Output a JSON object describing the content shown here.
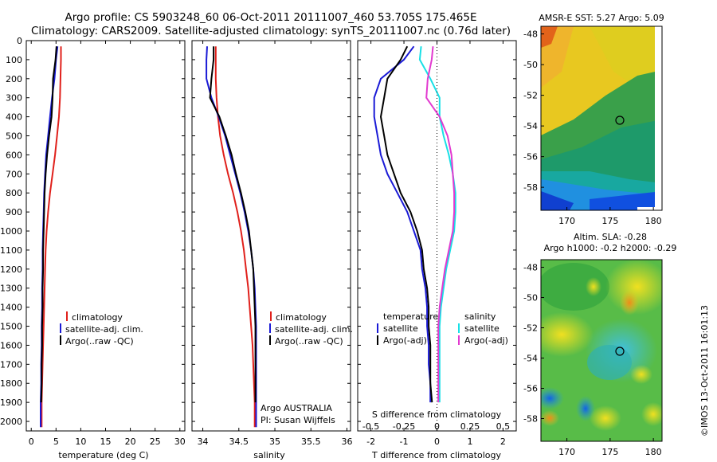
{
  "header": {
    "title_line1": "Argo profile: CS 5903248_60 06-Oct-2011 20111007_460 53.705S 175.465E",
    "title_line2": "Climatology: CARS2009. Satellite-adjusted climatology: synTS_20111007.nc (0.76d later)"
  },
  "colors": {
    "climatology": "#e0201b",
    "satellite": "#1a1ad6",
    "argo": "#000000",
    "sal_satellite": "#18e0e6",
    "sal_argo": "#e23ad0"
  },
  "depth_ticks": [
    "0",
    "100",
    "200",
    "300",
    "400",
    "500",
    "600",
    "700",
    "800",
    "900",
    "1000",
    "1100",
    "1200",
    "1300",
    "1400",
    "1500",
    "1600",
    "1700",
    "1800",
    "1900",
    "2000"
  ],
  "panel_temperature": {
    "xlabel": "temperature (deg C)",
    "xticks": [
      "0",
      "5",
      "10",
      "15",
      "20",
      "25",
      "30"
    ],
    "legend": [
      "climatology",
      "satellite-adj. clim.",
      "Argo(..raw -QC)"
    ]
  },
  "panel_salinity": {
    "xlabel": "salinity",
    "xticks": [
      "34",
      "34.5",
      "35",
      "35.5",
      "36"
    ],
    "legend": [
      "climatology",
      "satellite-adj. clim.",
      "Argo(..raw -QC)"
    ],
    "note_line1": "Argo AUSTRALIA",
    "note_line2": "PI: Susan Wijffels"
  },
  "panel_difference": {
    "xlabel": "T difference from climatology",
    "xlabel_top": "S difference from climatology",
    "xticks_t": [
      "-2",
      "-1",
      "0",
      "1",
      "2"
    ],
    "xticks_s": [
      "-0.5",
      "-0.25",
      "0",
      "0.25",
      "0.5"
    ],
    "legend_left_title": "temperature",
    "legend_left": [
      "satellite",
      "Argo(-adj)"
    ],
    "legend_right_title": "salinity",
    "legend_right": [
      "satellite",
      "Argo(-adj)"
    ]
  },
  "map_sst": {
    "title": "AMSR-E SST: 5.27 Argo: 5.09",
    "yticks": [
      "-48",
      "-50",
      "-52",
      "-54",
      "-56",
      "-58"
    ],
    "xticks": [
      "170",
      "175",
      "180"
    ]
  },
  "map_sla": {
    "title_line1": "Altim. SLA: -0.28",
    "title_line2": "Argo h1000: -0.2 h2000: -0.29",
    "yticks": [
      "-48",
      "-50",
      "-52",
      "-54",
      "-56",
      "-58"
    ],
    "xticks": [
      "170",
      "175",
      "180"
    ]
  },
  "stamp": "©IMOS 13-Oct-2011 16:01:13",
  "chart_data": [
    {
      "type": "line",
      "name": "temperature profile",
      "xlabel": "temperature (deg C)",
      "ylabel": "",
      "xlim": [
        -1,
        31
      ],
      "ylim": [
        2050,
        0
      ],
      "series": [
        {
          "name": "climatology",
          "x": [
            6.0,
            6.0,
            5.9,
            5.8,
            5.6,
            5.2,
            4.8,
            4.3,
            3.8,
            3.4,
            3.1,
            2.9,
            2.8,
            2.7,
            2.6,
            2.5,
            2.4,
            2.3,
            2.2,
            2.1,
            2.1
          ],
          "y": [
            30,
            100,
            200,
            300,
            400,
            500,
            600,
            700,
            800,
            900,
            1000,
            1100,
            1200,
            1300,
            1400,
            1500,
            1600,
            1700,
            1800,
            1900,
            2030
          ]
        },
        {
          "name": "satellite-adj. clim.",
          "x": [
            5.3,
            5.0,
            4.7,
            4.2,
            3.8,
            3.4,
            3.0,
            2.8,
            2.6,
            2.5,
            2.4,
            2.3,
            2.3,
            2.2,
            2.2,
            2.1,
            2.1,
            2.0,
            2.0,
            1.9,
            1.9
          ],
          "y": [
            30,
            100,
            200,
            300,
            400,
            500,
            600,
            700,
            800,
            900,
            1000,
            1100,
            1200,
            1300,
            1400,
            1500,
            1600,
            1700,
            1800,
            1900,
            2030
          ]
        },
        {
          "name": "Argo(..raw -QC)",
          "x": [
            5.1,
            4.9,
            4.4,
            4.3,
            4.1,
            3.6,
            3.2,
            2.9,
            2.7,
            2.6,
            2.5,
            2.4,
            2.4,
            2.3,
            2.3,
            2.2,
            2.2,
            2.1,
            2.1,
            2.0
          ],
          "y": [
            30,
            100,
            200,
            300,
            400,
            500,
            600,
            700,
            800,
            900,
            1000,
            1100,
            1200,
            1300,
            1400,
            1500,
            1600,
            1700,
            1800,
            1900
          ]
        }
      ]
    },
    {
      "type": "line",
      "name": "salinity profile",
      "xlabel": "salinity",
      "xlim": [
        33.85,
        36.05
      ],
      "ylim": [
        2050,
        0
      ],
      "series": [
        {
          "name": "climatology",
          "x": [
            34.18,
            34.18,
            34.18,
            34.19,
            34.21,
            34.24,
            34.29,
            34.35,
            34.42,
            34.48,
            34.53,
            34.57,
            34.6,
            34.63,
            34.65,
            34.67,
            34.69,
            34.7,
            34.71,
            34.72,
            34.72
          ],
          "y": [
            30,
            100,
            200,
            300,
            400,
            500,
            600,
            700,
            800,
            900,
            1000,
            1100,
            1200,
            1300,
            1400,
            1500,
            1600,
            1700,
            1800,
            1900,
            2030
          ]
        },
        {
          "name": "satellite-adj. clim.",
          "x": [
            34.06,
            34.05,
            34.05,
            34.12,
            34.22,
            34.31,
            34.38,
            34.45,
            34.52,
            34.58,
            34.63,
            34.67,
            34.7,
            34.72,
            34.73,
            34.74,
            34.74,
            34.74,
            34.74,
            34.74,
            34.74
          ],
          "y": [
            30,
            100,
            200,
            300,
            400,
            500,
            600,
            700,
            800,
            900,
            1000,
            1100,
            1200,
            1300,
            1400,
            1500,
            1600,
            1700,
            1800,
            1900,
            2030
          ]
        },
        {
          "name": "Argo(..raw -QC)",
          "x": [
            34.15,
            34.15,
            34.12,
            34.1,
            34.23,
            34.32,
            34.4,
            34.46,
            34.53,
            34.59,
            34.64,
            34.67,
            34.7,
            34.71,
            34.72,
            34.73,
            34.73,
            34.73,
            34.73,
            34.73
          ],
          "y": [
            30,
            100,
            200,
            300,
            400,
            500,
            600,
            700,
            800,
            900,
            1000,
            1100,
            1200,
            1300,
            1400,
            1500,
            1600,
            1700,
            1800,
            1900
          ]
        }
      ]
    },
    {
      "type": "line",
      "name": "difference from climatology",
      "xlabel": "T difference from climatology",
      "xlim": [
        -2.4,
        2.4
      ],
      "ylim": [
        2050,
        0
      ],
      "series": [
        {
          "name": "temperature satellite",
          "x": [
            -0.7,
            -1.0,
            -1.7,
            -1.9,
            -1.9,
            -1.8,
            -1.7,
            -1.5,
            -1.2,
            -0.9,
            -0.7,
            -0.5,
            -0.45,
            -0.35,
            -0.3,
            -0.3,
            -0.25,
            -0.25,
            -0.2,
            -0.2
          ],
          "y": [
            30,
            100,
            200,
            300,
            400,
            500,
            600,
            700,
            800,
            900,
            1000,
            1100,
            1200,
            1300,
            1400,
            1500,
            1600,
            1700,
            1800,
            1900
          ]
        },
        {
          "name": "temperature Argo(-adj)",
          "x": [
            -0.9,
            -1.1,
            -1.5,
            -1.6,
            -1.7,
            -1.6,
            -1.5,
            -1.3,
            -1.1,
            -0.8,
            -0.6,
            -0.45,
            -0.4,
            -0.3,
            -0.25,
            -0.25,
            -0.2,
            -0.2,
            -0.2,
            -0.15
          ],
          "y": [
            30,
            100,
            200,
            300,
            400,
            500,
            600,
            700,
            800,
            900,
            1000,
            1100,
            1200,
            1300,
            1400,
            1500,
            1600,
            1700,
            1800,
            1900
          ]
        },
        {
          "name": "salinity satellite",
          "x": [
            -0.12,
            -0.13,
            -0.05,
            0.02,
            0.02,
            0.05,
            0.09,
            0.12,
            0.14,
            0.14,
            0.13,
            0.1,
            0.07,
            0.05,
            0.03,
            0.02,
            0.02,
            0.02,
            0.02,
            0.02
          ],
          "y": [
            30,
            100,
            200,
            300,
            400,
            500,
            600,
            700,
            800,
            900,
            1000,
            1100,
            1200,
            1300,
            1400,
            1500,
            1600,
            1700,
            1800,
            1900
          ]
        },
        {
          "name": "salinity Argo(-adj)",
          "x": [
            -0.03,
            -0.04,
            -0.07,
            -0.08,
            0.02,
            0.08,
            0.11,
            0.12,
            0.13,
            0.13,
            0.12,
            0.09,
            0.06,
            0.04,
            0.02,
            0.01,
            0.01,
            0.01,
            0.01,
            0.01
          ],
          "y": [
            30,
            100,
            200,
            300,
            400,
            500,
            600,
            700,
            800,
            900,
            1000,
            1100,
            1200,
            1300,
            1400,
            1500,
            1600,
            1700,
            1800,
            1900
          ]
        }
      ]
    },
    {
      "type": "heatmap",
      "name": "AMSR-E SST map",
      "title": "AMSR-E SST: 5.27 Argo: 5.09",
      "xlim": [
        167,
        181
      ],
      "ylim": [
        -59.5,
        -47.5
      ],
      "marker": {
        "x": 175.465,
        "y": -53.705
      }
    },
    {
      "type": "heatmap",
      "name": "Altimeter SLA map",
      "title": "Altim. SLA: -0.28",
      "xlim": [
        167,
        181
      ],
      "ylim": [
        -59.5,
        -47.5
      ],
      "marker": {
        "x": 175.465,
        "y": -53.705
      }
    }
  ]
}
